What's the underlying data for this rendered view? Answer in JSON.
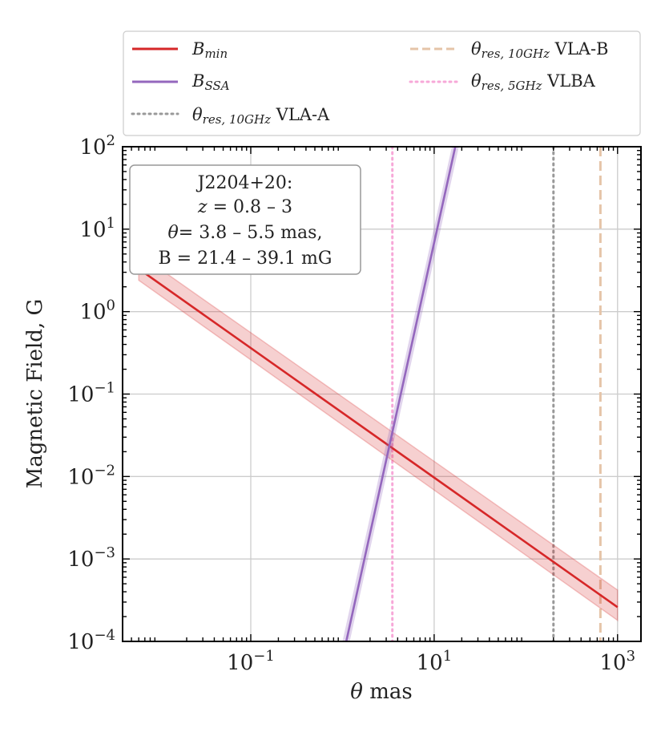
{
  "chart_data": {
    "type": "line",
    "xscale": "log",
    "yscale": "log",
    "xlim": [
      0.004,
      1800
    ],
    "ylim": [
      0.0001,
      100
    ],
    "xlabel_var": "θ",
    "xlabel_unit": " mas",
    "ylabel": "Magnetic Field, G",
    "x_ticks": [
      {
        "base": "10",
        "exp": "−1",
        "value": 0.1
      },
      {
        "base": "10",
        "exp": "1",
        "value": 10
      },
      {
        "base": "10",
        "exp": "3",
        "value": 1000
      }
    ],
    "y_ticks": [
      {
        "base": "10",
        "exp": "2",
        "value": 100
      },
      {
        "base": "10",
        "exp": "1",
        "value": 10
      },
      {
        "base": "10",
        "exp": "0",
        "value": 1
      },
      {
        "base": "10",
        "exp": "−1",
        "value": 0.1
      },
      {
        "base": "10",
        "exp": "−2",
        "value": 0.01
      },
      {
        "base": "10",
        "exp": "−3",
        "value": 0.001
      },
      {
        "base": "10",
        "exp": "−4",
        "value": 0.0001
      }
    ],
    "series": [
      {
        "name": "B_min",
        "label_main": "B",
        "label_sub": "min",
        "color": "#d62728",
        "style": "solid",
        "x": [
          0.006,
          1000
        ],
        "y": [
          3.3,
          0.00026
        ],
        "band_lower": [
          2.4,
          0.00018
        ],
        "band_upper": [
          5.0,
          0.00042
        ]
      },
      {
        "name": "B_SSA",
        "label_main": "B",
        "label_sub": "SSA",
        "color": "#9467bd",
        "style": "solid",
        "x": [
          1.1,
          17
        ],
        "y": [
          0.0001,
          100
        ],
        "band_lower_x": [
          1.0,
          15.6
        ],
        "band_upper_x": [
          1.2,
          18.6
        ]
      }
    ],
    "vlines": [
      {
        "name": "theta_res_10GHz_VLA-A",
        "label_sub": "res, 10GHz",
        "label_text": " VLA-A",
        "x": 200,
        "color": "#999999",
        "style": "dotted"
      },
      {
        "name": "theta_res_10GHz_VLA-B",
        "label_sub": "res, 10GHz",
        "label_text": " VLA-B",
        "x": 650,
        "color": "#e5c4a8",
        "style": "dashed"
      },
      {
        "name": "theta_res_5GHz_VLBA",
        "label_sub": "res, 5GHz",
        "label_text": " VLBA",
        "x": 3.5,
        "color": "#f7a8d8",
        "style": "dotted"
      }
    ],
    "legend_theta": "θ",
    "annotation": {
      "line1": "J2204+20:",
      "line2_var": "z",
      "line2_rest": " = 0.8 – 3",
      "line3_var": "θ",
      "line3_rest": "= 3.8 – 5.5 mas,",
      "line4": "B = 21.4 – 39.1 mG"
    }
  }
}
